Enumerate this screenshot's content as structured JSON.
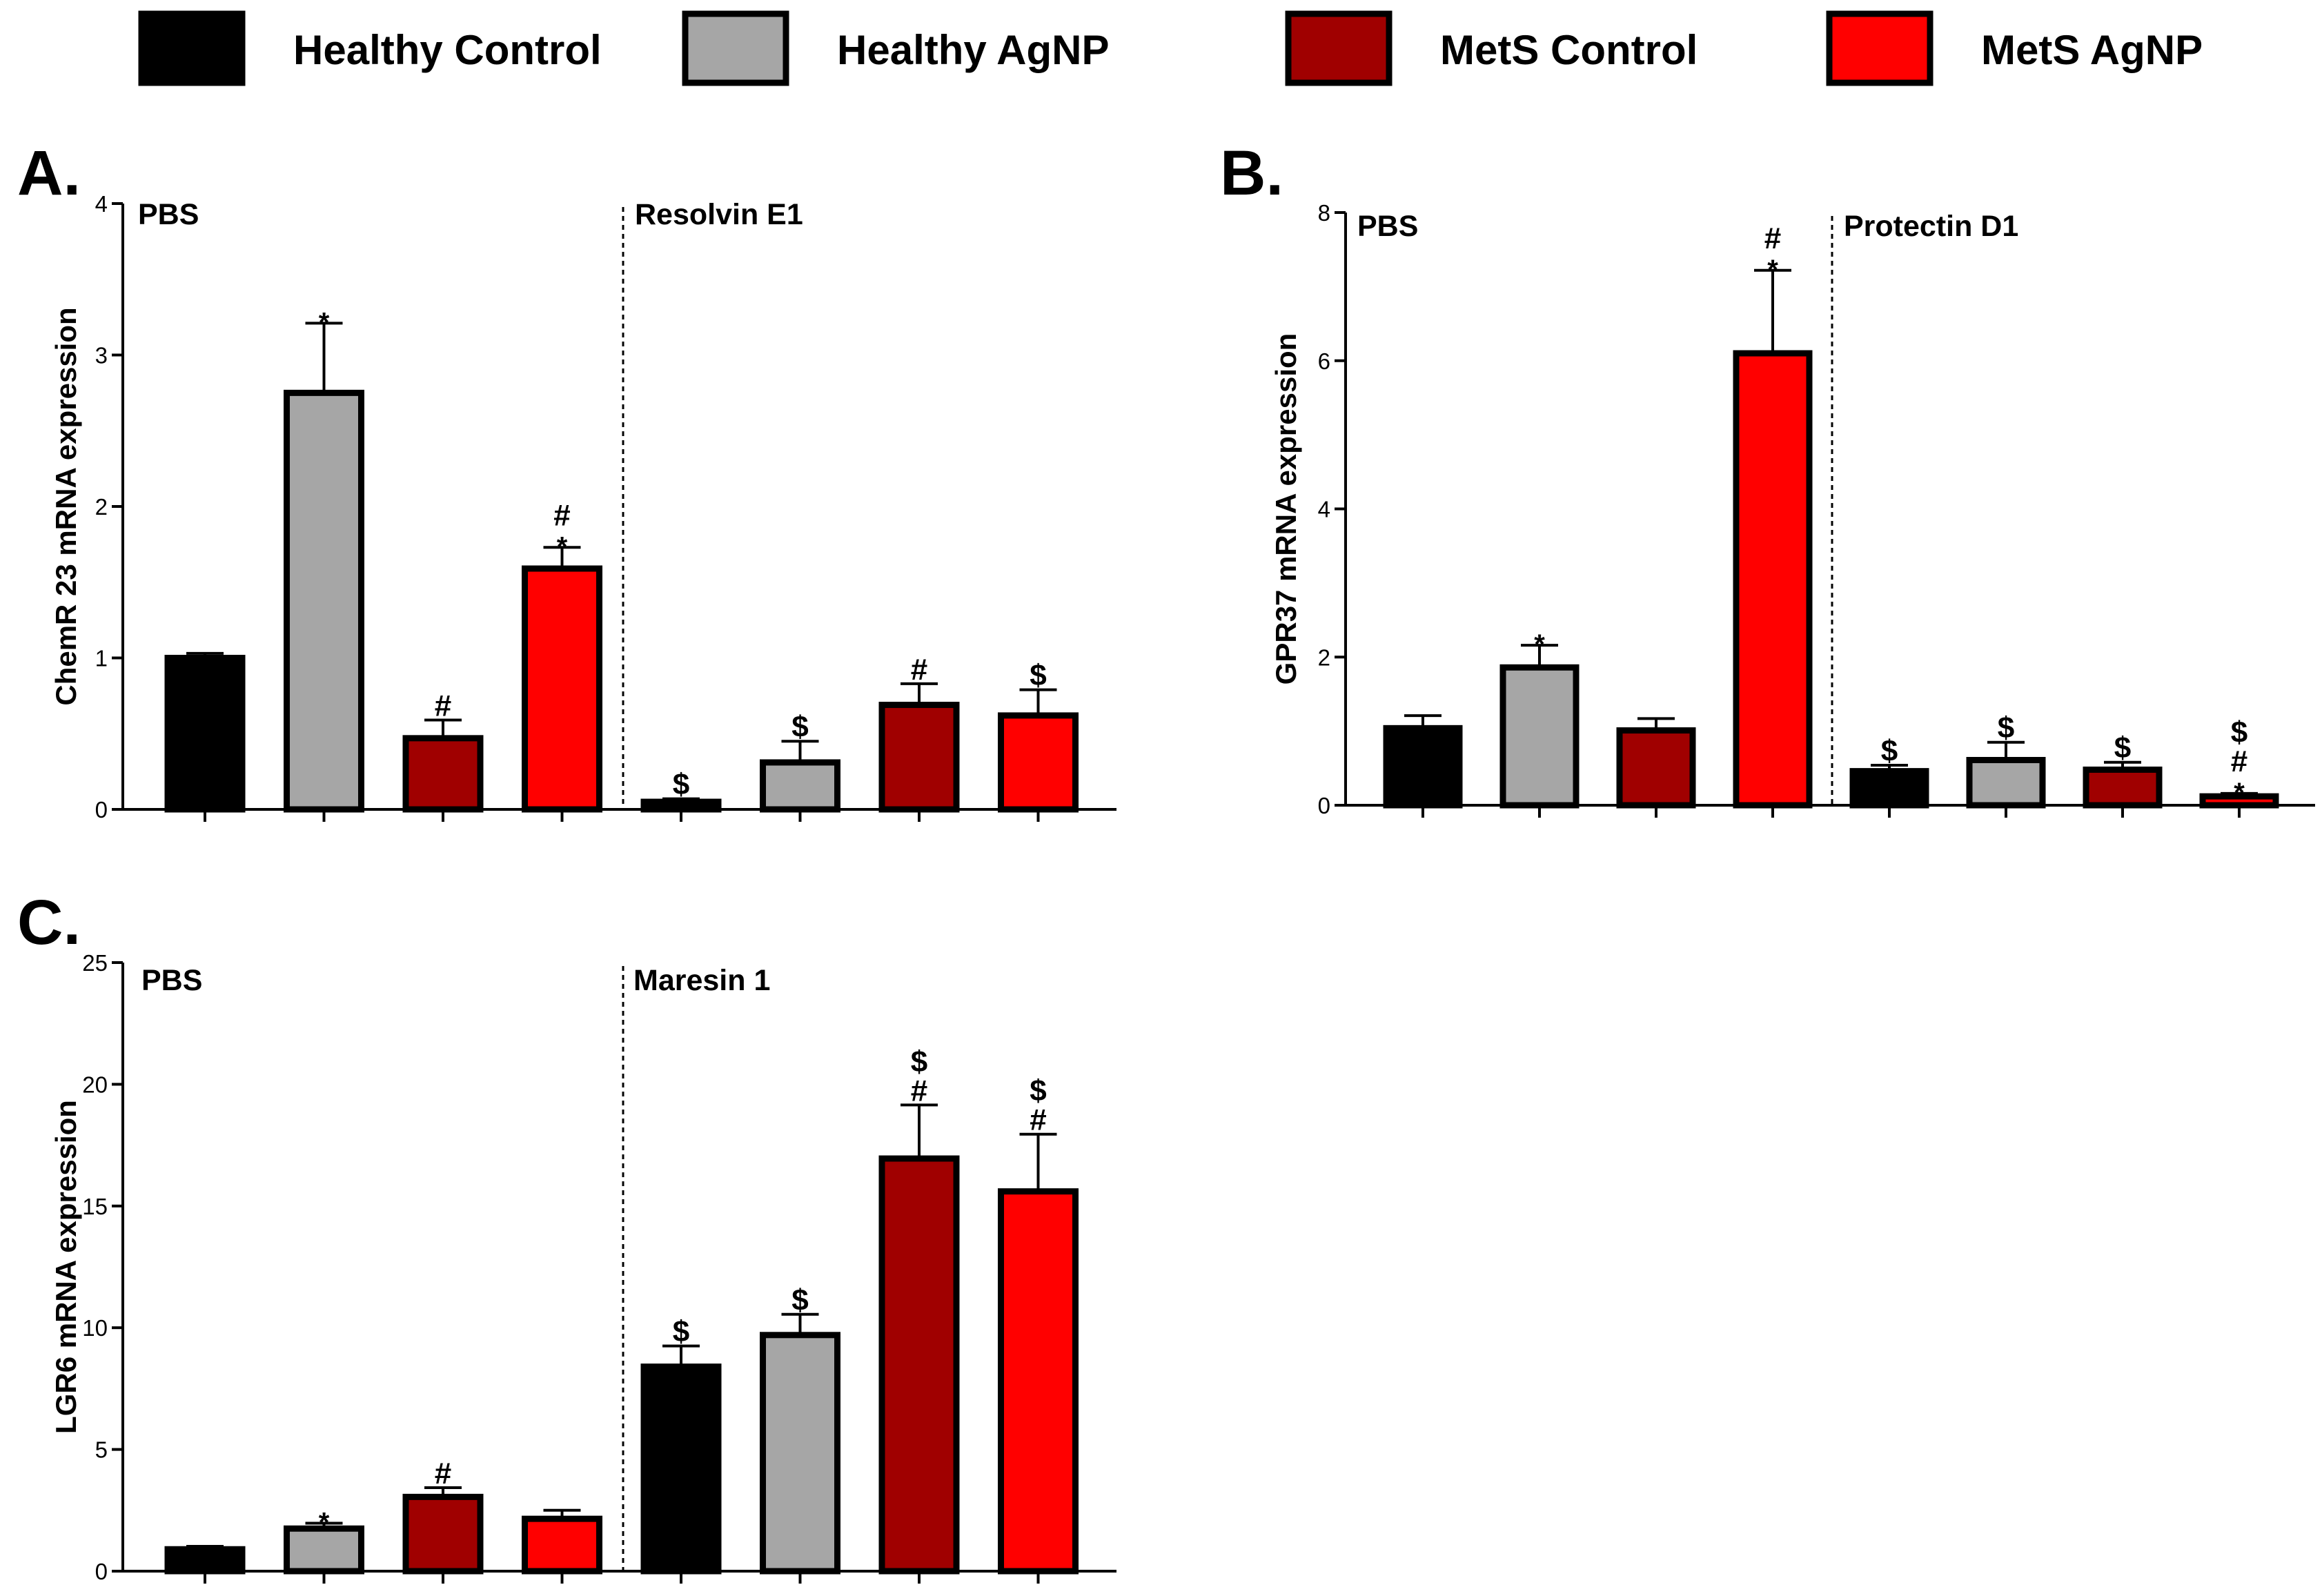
{
  "legend": [
    {
      "label": "Healthy Control",
      "color": "#000000"
    },
    {
      "label": "Healthy AgNP",
      "color": "#a6a6a6"
    },
    {
      "label": "MetS Control",
      "color": "#a00000"
    },
    {
      "label": "MetS AgNP",
      "color": "#ff0000"
    }
  ],
  "chart_data": [
    {
      "type": "bar",
      "panel": "A.",
      "ylabel": "ChemR 23 mRNA expression",
      "ylim": [
        0,
        4
      ],
      "yticks": [
        "0",
        "1",
        "2",
        "3",
        "4"
      ],
      "sections": [
        "PBS",
        "Resolvin E1"
      ],
      "series_colors": [
        "#000000",
        "#a6a6a6",
        "#a00000",
        "#ff0000"
      ],
      "values": [
        1.0,
        2.75,
        0.47,
        1.59,
        0.05,
        0.31,
        0.69,
        0.62
      ],
      "errors": [
        0.03,
        0.46,
        0.12,
        0.14,
        0.02,
        0.14,
        0.14,
        0.17
      ],
      "annotations": [
        [],
        [
          "*"
        ],
        [
          "#"
        ],
        [
          "#",
          "*"
        ],
        [
          "$"
        ],
        [
          "$"
        ],
        [
          "#"
        ],
        [
          "$"
        ]
      ]
    },
    {
      "type": "bar",
      "panel": "B.",
      "ylabel": "GPR37 mRNA expression",
      "ylim": [
        0,
        8
      ],
      "yticks": [
        "0",
        "2",
        "4",
        "6",
        "8"
      ],
      "sections": [
        "PBS",
        "Protectin D1"
      ],
      "series_colors": [
        "#000000",
        "#a6a6a6",
        "#a00000",
        "#ff0000"
      ],
      "values": [
        1.04,
        1.86,
        1.01,
        6.1,
        0.46,
        0.61,
        0.48,
        0.12
      ],
      "errors": [
        0.17,
        0.3,
        0.16,
        1.12,
        0.08,
        0.24,
        0.1,
        0.04
      ],
      "annotations": [
        [],
        [
          "*"
        ],
        [],
        [
          "#",
          "*"
        ],
        [
          "$"
        ],
        [
          "$"
        ],
        [
          "$"
        ],
        [
          "$",
          "#",
          "*"
        ]
      ]
    },
    {
      "type": "bar",
      "panel": "C.",
      "ylabel": "LGR6 mRNA expression",
      "ylim": [
        0,
        25
      ],
      "yticks": [
        "0",
        "5",
        "10",
        "15",
        "20",
        "25"
      ],
      "sections": [
        "PBS",
        "Maresin 1"
      ],
      "series_colors": [
        "#000000",
        "#a6a6a6",
        "#a00000",
        "#ff0000"
      ],
      "values": [
        0.9,
        1.75,
        3.05,
        2.15,
        8.4,
        9.7,
        16.95,
        15.6
      ],
      "errors": [
        0.12,
        0.22,
        0.38,
        0.35,
        0.85,
        0.85,
        2.2,
        2.35
      ],
      "annotations": [
        [],
        [
          "*"
        ],
        [
          "#"
        ],
        [],
        [
          "$"
        ],
        [
          "$"
        ],
        [
          "$",
          "#"
        ],
        [
          "$",
          "#"
        ]
      ]
    }
  ]
}
